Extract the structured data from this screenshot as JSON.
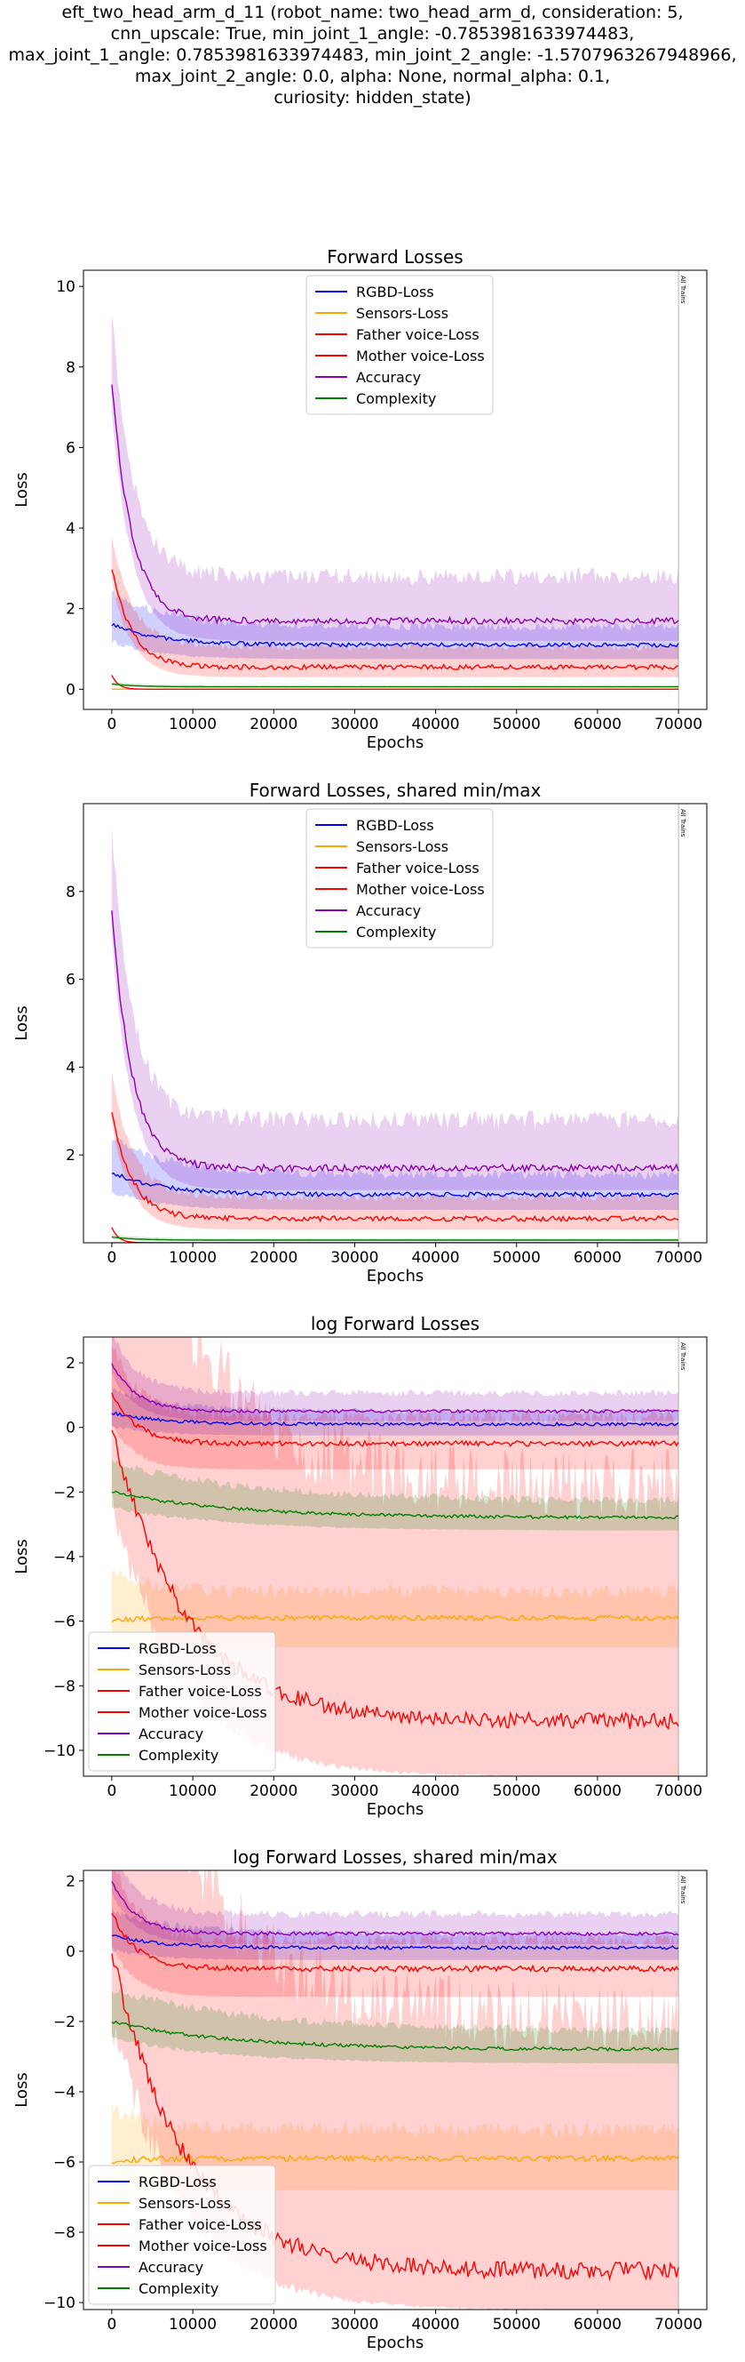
{
  "suptitle_lines": [
    "eft_two_head_arm_d_11 (robot_name: two_head_arm_d, consideration: 5,",
    "cnn_upscale: True, min_joint_1_angle: -0.7853981633974483,",
    "max_joint_1_angle: 0.7853981633974483, min_joint_2_angle: -1.5707963267948966,",
    "max_joint_2_angle: 0.0, alpha: None, normal_alpha: 0.1,",
    "curiosity: hidden_state)"
  ],
  "chart_data": [
    {
      "type": "line",
      "title": "Forward Losses",
      "xlabel": "Epochs",
      "ylabel": "Loss",
      "xlim": [
        -3500,
        73500
      ],
      "ylim": [
        -0.5,
        10.4
      ],
      "xticks": [
        0,
        10000,
        20000,
        30000,
        40000,
        50000,
        60000,
        70000
      ],
      "yticks": [
        0,
        2,
        4,
        6,
        8,
        10
      ],
      "ytick_labels": [
        "0",
        "2",
        "4",
        "6",
        "8",
        "10"
      ],
      "vline": {
        "x": 70000,
        "label": "All Trains"
      },
      "legend": "top-center",
      "grid": false,
      "series": [
        {
          "name": "RGBD-Loss",
          "color": "#0000ff",
          "start": 1.6,
          "plateau": 1.1,
          "tau": 6000,
          "noise": 0.05,
          "band_lo": 0.75,
          "band_hi": 1.45
        },
        {
          "name": "Sensors-Loss",
          "color": "#ffa500",
          "start": 0.004,
          "plateau": 0.003,
          "tau": 2000,
          "noise": 0.0,
          "band_lo": 0.0,
          "band_hi": 0.01
        },
        {
          "name": "Father voice-Loss",
          "color": "#ff0000",
          "start": 3.0,
          "plateau": 0.55,
          "tau": 2500,
          "noise": 0.06,
          "band_lo": 0.3,
          "band_hi": 0.95
        },
        {
          "name": "Mother voice-Loss",
          "color": "#ff0000",
          "start": 0.35,
          "plateau": 0.0001,
          "tau": 800,
          "noise": 0.0,
          "band_lo": 0.0,
          "band_hi": 0.01
        },
        {
          "name": "Accuracy",
          "color": "#8b00b0",
          "start": 7.6,
          "plateau": 1.7,
          "tau": 2500,
          "noise": 0.08,
          "band_lo": 1.2,
          "band_hi": 2.6
        },
        {
          "name": "Complexity",
          "color": "#008000",
          "start": 0.13,
          "plateau": 0.06,
          "tau": 3000,
          "noise": 0.0,
          "band_lo": 0.04,
          "band_hi": 0.09
        }
      ]
    },
    {
      "type": "line",
      "title": "Forward Losses, shared min/max",
      "xlabel": "Epochs",
      "ylabel": "Loss",
      "xlim": [
        -3500,
        73500
      ],
      "ylim": [
        0.0,
        10.0
      ],
      "xticks": [
        0,
        10000,
        20000,
        30000,
        40000,
        50000,
        60000,
        70000
      ],
      "yticks": [
        2,
        4,
        6,
        8
      ],
      "ytick_labels": [
        "2",
        "4",
        "6",
        "8"
      ],
      "vline": {
        "x": 70000,
        "label": "All Trains"
      },
      "legend": "top-center",
      "grid": false,
      "series": [
        {
          "name": "RGBD-Loss",
          "color": "#0000ff",
          "start": 1.6,
          "plateau": 1.1,
          "tau": 6000,
          "noise": 0.05,
          "band_lo": 0.75,
          "band_hi": 1.45
        },
        {
          "name": "Sensors-Loss",
          "color": "#ffa500",
          "start": 0.004,
          "plateau": 0.003,
          "tau": 2000,
          "noise": 0.0,
          "band_lo": 0.0,
          "band_hi": 0.01
        },
        {
          "name": "Father voice-Loss",
          "color": "#ff0000",
          "start": 3.0,
          "plateau": 0.55,
          "tau": 2500,
          "noise": 0.06,
          "band_lo": 0.3,
          "band_hi": 0.95
        },
        {
          "name": "Mother voice-Loss",
          "color": "#ff0000",
          "start": 0.35,
          "plateau": 0.0001,
          "tau": 800,
          "noise": 0.0,
          "band_lo": 0.0,
          "band_hi": 0.01
        },
        {
          "name": "Accuracy",
          "color": "#8b00b0",
          "start": 7.6,
          "plateau": 1.7,
          "tau": 2500,
          "noise": 0.08,
          "band_lo": 1.2,
          "band_hi": 2.6
        },
        {
          "name": "Complexity",
          "color": "#008000",
          "start": 0.13,
          "plateau": 0.06,
          "tau": 3000,
          "noise": 0.0,
          "band_lo": 0.04,
          "band_hi": 0.09
        }
      ]
    },
    {
      "type": "line",
      "title": "log Forward Losses",
      "xlabel": "Epochs",
      "ylabel": "Loss",
      "xlim": [
        -3500,
        73500
      ],
      "ylim": [
        -10.8,
        2.8
      ],
      "xticks": [
        0,
        10000,
        20000,
        30000,
        40000,
        50000,
        60000,
        70000
      ],
      "yticks": [
        -10,
        -8,
        -6,
        -4,
        -2,
        0,
        2
      ],
      "ytick_labels": [
        "−10",
        "−8",
        "−6",
        "−4",
        "−2",
        "0",
        "2"
      ],
      "vline": {
        "x": 70000,
        "label": "All Trains"
      },
      "legend": "lower-left",
      "grid": false,
      "series": [
        {
          "name": "RGBD-Loss",
          "color": "#0000ff",
          "start": 0.45,
          "plateau": 0.1,
          "tau": 6000,
          "noise": 0.05,
          "band_lo": -0.25,
          "band_hi": 0.4
        },
        {
          "name": "Sensors-Loss",
          "color": "#ffa500",
          "start": -6.0,
          "plateau": -5.9,
          "tau": 3000,
          "noise": 0.08,
          "band_lo": -6.8,
          "band_hi": -5.3
        },
        {
          "name": "Father voice-Loss",
          "color": "#ff0000",
          "start": 1.1,
          "plateau": -0.5,
          "tau": 3000,
          "noise": 0.08,
          "band_lo": -1.3,
          "band_hi": 0.1
        },
        {
          "name": "Mother voice-Loss",
          "color": "#ff0000",
          "start": 0.0,
          "plateau": -9.1,
          "tau": 9000,
          "noise": 0.25,
          "band_lo": -10.8,
          "band_hi": -3.0
        },
        {
          "name": "Accuracy",
          "color": "#8b00b0",
          "start": 2.0,
          "plateau": 0.5,
          "tau": 3000,
          "noise": 0.05,
          "band_lo": 0.2,
          "band_hi": 0.95
        },
        {
          "name": "Complexity",
          "color": "#008000",
          "start": -2.0,
          "plateau": -2.8,
          "tau": 15000,
          "noise": 0.05,
          "band_lo": -3.2,
          "band_hi": -2.4
        }
      ]
    },
    {
      "type": "line",
      "title": "log Forward Losses, shared min/max",
      "xlabel": "Epochs",
      "ylabel": "Loss",
      "xlim": [
        -3500,
        73500
      ],
      "ylim": [
        -10.2,
        2.3
      ],
      "xticks": [
        0,
        10000,
        20000,
        30000,
        40000,
        50000,
        60000,
        70000
      ],
      "yticks": [
        -10,
        -8,
        -6,
        -4,
        -2,
        0,
        2
      ],
      "ytick_labels": [
        "−10",
        "−8",
        "−6",
        "−4",
        "−2",
        "0",
        "2"
      ],
      "vline": {
        "x": 70000,
        "label": "All Trains"
      },
      "legend": "lower-left",
      "grid": false,
      "series": [
        {
          "name": "RGBD-Loss",
          "color": "#0000ff",
          "start": 0.45,
          "plateau": 0.1,
          "tau": 6000,
          "noise": 0.05,
          "band_lo": -0.25,
          "band_hi": 0.4
        },
        {
          "name": "Sensors-Loss",
          "color": "#ffa500",
          "start": -6.0,
          "plateau": -5.9,
          "tau": 3000,
          "noise": 0.08,
          "band_lo": -6.8,
          "band_hi": -5.3
        },
        {
          "name": "Father voice-Loss",
          "color": "#ff0000",
          "start": 1.1,
          "plateau": -0.5,
          "tau": 3000,
          "noise": 0.08,
          "band_lo": -1.3,
          "band_hi": 0.1
        },
        {
          "name": "Mother voice-Loss",
          "color": "#ff0000",
          "start": 0.0,
          "plateau": -9.1,
          "tau": 9000,
          "noise": 0.25,
          "band_lo": -10.2,
          "band_hi": -3.0
        },
        {
          "name": "Accuracy",
          "color": "#8b00b0",
          "start": 2.0,
          "plateau": 0.5,
          "tau": 3000,
          "noise": 0.05,
          "band_lo": 0.2,
          "band_hi": 0.95
        },
        {
          "name": "Complexity",
          "color": "#008000",
          "start": -2.0,
          "plateau": -2.8,
          "tau": 15000,
          "noise": 0.05,
          "band_lo": -3.2,
          "band_hi": -2.4
        }
      ]
    }
  ]
}
